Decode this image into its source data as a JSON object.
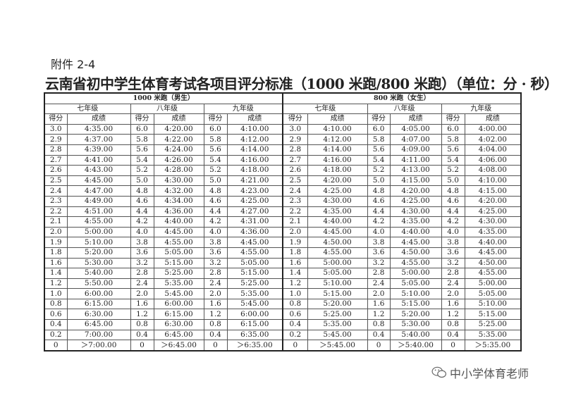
{
  "attachment_label": "附件 2-4",
  "title": "云南省初中学生体育考试各项目评分标准（1000 米跑/800 米跑）（单位：分 · 秒）",
  "table": {
    "groups": [
      "1000 米跑（男生）",
      "800 米跑（女生）"
    ],
    "grades": [
      "七年级",
      "八年级",
      "九年级",
      "七年级",
      "八年级",
      "九年级"
    ],
    "col_headers": [
      "得分",
      "成绩"
    ],
    "rows": [
      [
        "3.0",
        "4:35.00",
        "6.0",
        "4:20.00",
        "6.0",
        "4:10.00",
        "3.0",
        "4:10.00",
        "6.0",
        "4:05.00",
        "6.0",
        "4:00.00"
      ],
      [
        "2.9",
        "4:37.00",
        "5.8",
        "4:22.00",
        "5.8",
        "4:12.00",
        "2.9",
        "4:12.00",
        "5.8",
        "4:07.00",
        "5.8",
        "4:02.00"
      ],
      [
        "2.8",
        "4:39.00",
        "5.6",
        "4:24.00",
        "5.6",
        "4:14.00",
        "2.8",
        "4:14.00",
        "5.6",
        "4:09.00",
        "5.6",
        "4:04.00"
      ],
      [
        "2.7",
        "4:41.00",
        "5.4",
        "4:26.00",
        "5.4",
        "4:16.00",
        "2.7",
        "4:16.00",
        "5.4",
        "4:11.00",
        "5.4",
        "4:06.00"
      ],
      [
        "2.6",
        "4:43.00",
        "5.2",
        "4:28.00",
        "5.2",
        "4:18.00",
        "2.6",
        "4:18.00",
        "5.2",
        "4:13.00",
        "5.2",
        "4:08.00"
      ],
      [
        "2.5",
        "4:45.00",
        "5.0",
        "4:30.00",
        "5.0",
        "4:21.00",
        "2.5",
        "4:20.00",
        "5.0",
        "4:15.00",
        "5.0",
        "4:10.00"
      ],
      [
        "2.4",
        "4:47.00",
        "4.8",
        "4:32.00",
        "4.8",
        "4:23.00",
        "2.4",
        "4:25.00",
        "4.8",
        "4:20.00",
        "4.8",
        "4:15.00"
      ],
      [
        "2.3",
        "4:49.00",
        "4.6",
        "4:34.00",
        "4.6",
        "4:25.00",
        "2.3",
        "4:30.00",
        "4.6",
        "4:25.00",
        "4.6",
        "4:20.00"
      ],
      [
        "2.2",
        "4:51.00",
        "4.4",
        "4:36.00",
        "4.4",
        "4:27.00",
        "2.2",
        "4:35.00",
        "4.4",
        "4:30.00",
        "4.4",
        "4:25.00"
      ],
      [
        "2.1",
        "4:55.00",
        "4.2",
        "4:40.00",
        "4.2",
        "4:31.00",
        "2.1",
        "4:40.00",
        "4.2",
        "4:35.00",
        "4.2",
        "4:30.00"
      ],
      [
        "2.0",
        "5:00.00",
        "4.0",
        "4:45.00",
        "4.0",
        "4:36.00",
        "2.0",
        "4:45.00",
        "4.0",
        "4:40.00",
        "4.0",
        "4:35.00"
      ],
      [
        "1.9",
        "5:10.00",
        "3.8",
        "4:55.00",
        "3.8",
        "4:45.00",
        "1.9",
        "4:50.00",
        "3.8",
        "4:45.00",
        "3.8",
        "4:40.00"
      ],
      [
        "1.8",
        "5:20.00",
        "3.6",
        "5:05.00",
        "3.6",
        "4:55.00",
        "1.8",
        "4:55.00",
        "3.6",
        "4:50.00",
        "3.6",
        "4:45.00"
      ],
      [
        "1.6",
        "5:30.00",
        "3.2",
        "5:15.00",
        "3.2",
        "5:05.00",
        "1.6",
        "5:00.00",
        "3.2",
        "4:55.00",
        "3.2",
        "4:50.00"
      ],
      [
        "1.4",
        "5:40.00",
        "2.8",
        "5:25.00",
        "2.8",
        "5:15.00",
        "1.4",
        "5:05.00",
        "2.8",
        "5:00.00",
        "2.8",
        "4:55.00"
      ],
      [
        "1.2",
        "5:50.00",
        "2.4",
        "5:35.00",
        "2.4",
        "5:25.00",
        "1.2",
        "5:10.00",
        "2.4",
        "5:05.00",
        "2.4",
        "5:00.00"
      ],
      [
        "1.0",
        "6:00.00",
        "2.0",
        "5:45.00",
        "2.0",
        "5:35.00",
        "1.0",
        "5:15.00",
        "2.0",
        "5:10.00",
        "2.0",
        "5:05.00"
      ],
      [
        "0.8",
        "6:15.00",
        "1.6",
        "6:00.00",
        "1.6",
        "5:45.00",
        "0.8",
        "5:20.00",
        "1.6",
        "5:15.00",
        "1.6",
        "5:10.00"
      ],
      [
        "0.6",
        "6:30.00",
        "1.2",
        "6:15.00",
        "1.2",
        "6:00.00",
        "0.6",
        "5:25.00",
        "1.2",
        "5:20.00",
        "1.2",
        "5:15.00"
      ],
      [
        "0.4",
        "6:45.00",
        "0.8",
        "6:30.00",
        "0.8",
        "6:15.00",
        "0.4",
        "5:35.00",
        "0.8",
        "5:30.00",
        "0.8",
        "5:25.00"
      ],
      [
        "0.2",
        "7:00.00",
        "0.4",
        "6:45.00",
        "0.4",
        "6:35.00",
        "0.2",
        "5:45.00",
        "0.4",
        "5:40.00",
        "0.4",
        "5:35.00"
      ],
      [
        "0",
        "＞7:00.00",
        "0",
        "＞6:45.00",
        "0",
        "＞6:35.00",
        "0",
        "＞5:45.00",
        "0",
        "＞5:40.00",
        "0",
        "＞5:35.00"
      ]
    ]
  },
  "watermark": {
    "icon": "wechat-icon",
    "text": "中小学体育老师"
  }
}
